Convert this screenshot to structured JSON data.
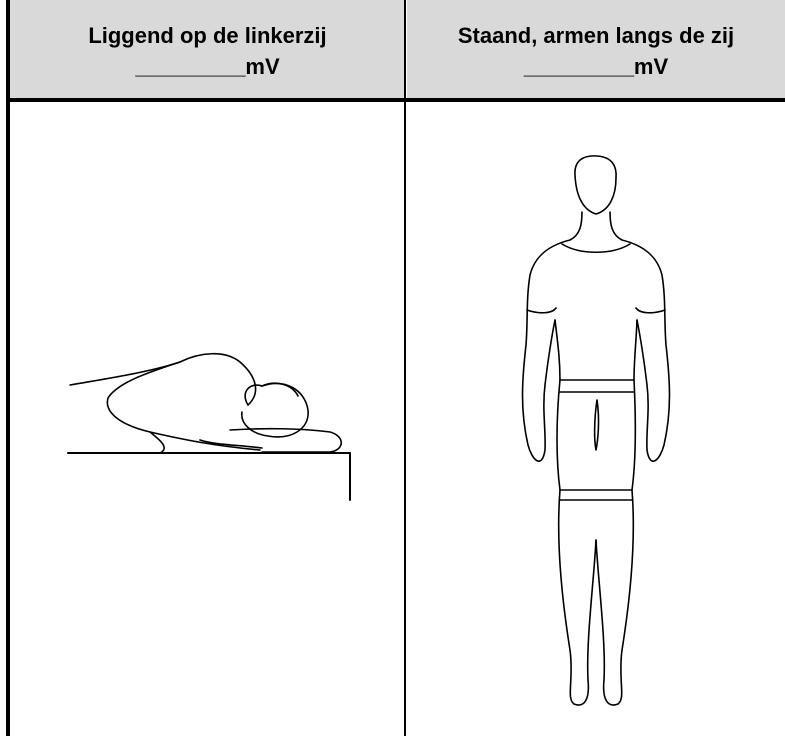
{
  "table": {
    "headers": [
      {
        "title": "Liggend op de linkerzij",
        "blank": "_________mV"
      },
      {
        "title": "Staand, armen langs de zij",
        "blank": "_________mV"
      }
    ]
  }
}
